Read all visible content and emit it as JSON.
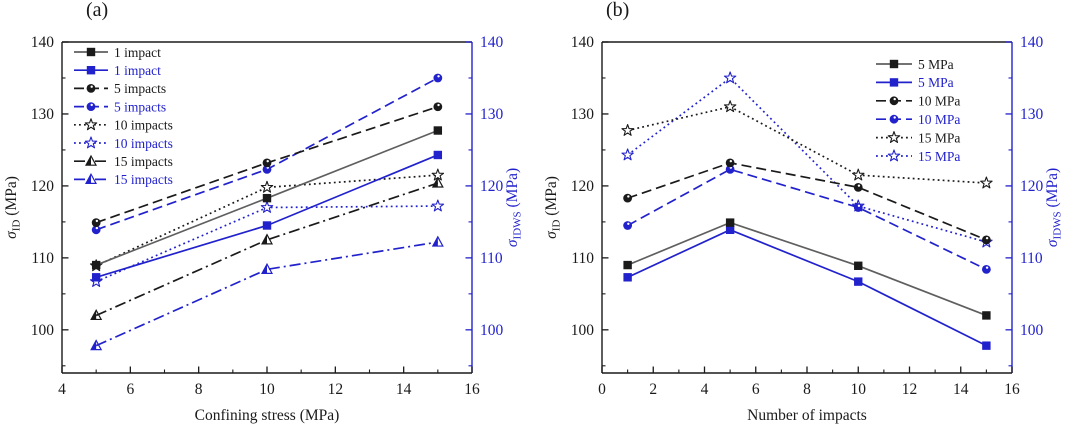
{
  "figure": {
    "background": "#ffffff"
  },
  "colors": {
    "black": "#1a1a1a",
    "gray": "#5f5f5f",
    "blue": "#2222cc",
    "white": "#ffffff"
  },
  "chart_data": [
    {
      "id": "a",
      "panel_label": "(a)",
      "type": "line",
      "xlabel": "Confining stress (MPa)",
      "ylabel_left": {
        "symbol": "σ",
        "subscript": "ID",
        "rest": " (MPa)"
      },
      "ylabel_right": {
        "symbol": "σ",
        "subscript": "IDWS",
        "rest": " (MPa)"
      },
      "xlim": [
        4,
        16
      ],
      "xticks": [
        4,
        6,
        8,
        10,
        12,
        14,
        16
      ],
      "x_minor_step": 1,
      "ylim": [
        94,
        140
      ],
      "yticks": [
        100,
        110,
        120,
        130,
        140
      ],
      "y_minor_step": 5,
      "grid": false,
      "legend_position": "top-left",
      "series": [
        {
          "label": "1 impact",
          "axis": "left",
          "color_key": "black",
          "line_color_key": "gray",
          "line_style": "solid",
          "marker": "square-filled",
          "x": [
            5,
            10,
            15
          ],
          "y": [
            109.0,
            118.3,
            127.7
          ]
        },
        {
          "label": "1 impact",
          "axis": "right",
          "color_key": "blue",
          "line_color_key": "blue",
          "line_style": "solid",
          "marker": "square-filled",
          "x": [
            5,
            10,
            15
          ],
          "y": [
            107.3,
            114.5,
            124.3
          ]
        },
        {
          "label": "5 impacts",
          "axis": "left",
          "color_key": "black",
          "line_color_key": "black",
          "line_style": "dashed",
          "marker": "circle-filled",
          "x": [
            5,
            10,
            15
          ],
          "y": [
            114.9,
            123.2,
            131.0
          ]
        },
        {
          "label": "5 impacts",
          "axis": "right",
          "color_key": "blue",
          "line_color_key": "blue",
          "line_style": "dashed",
          "marker": "circle-filled",
          "x": [
            5,
            10,
            15
          ],
          "y": [
            113.9,
            122.3,
            135.0
          ]
        },
        {
          "label": "10 impacts",
          "axis": "left",
          "color_key": "black",
          "line_color_key": "black",
          "line_style": "dotted",
          "marker": "star-open",
          "x": [
            5,
            10,
            15
          ],
          "y": [
            108.9,
            119.8,
            121.5
          ]
        },
        {
          "label": "10 impacts",
          "axis": "right",
          "color_key": "blue",
          "line_color_key": "blue",
          "line_style": "dotted",
          "marker": "star-open",
          "x": [
            5,
            10,
            15
          ],
          "y": [
            106.7,
            117.0,
            117.2
          ]
        },
        {
          "label": "15 impacts",
          "axis": "left",
          "color_key": "black",
          "line_color_key": "black",
          "line_style": "dashdot",
          "marker": "triangle-half",
          "x": [
            5,
            10,
            15
          ],
          "y": [
            102.0,
            112.5,
            120.4
          ]
        },
        {
          "label": "15 impacts",
          "axis": "right",
          "color_key": "blue",
          "line_color_key": "blue",
          "line_style": "dashdot",
          "marker": "triangle-half",
          "x": [
            5,
            10,
            15
          ],
          "y": [
            97.8,
            108.4,
            112.2
          ]
        }
      ]
    },
    {
      "id": "b",
      "panel_label": "(b)",
      "type": "line",
      "xlabel": "Number of impacts",
      "ylabel_left": {
        "symbol": "σ",
        "subscript": "ID",
        "rest": " (MPa)"
      },
      "ylabel_right": {
        "symbol": "σ",
        "subscript": "IDWS",
        "rest": " (MPa)"
      },
      "xlim": [
        0,
        16
      ],
      "xticks": [
        0,
        2,
        4,
        6,
        8,
        10,
        12,
        14,
        16
      ],
      "x_minor_step": 1,
      "ylim": [
        94,
        140
      ],
      "yticks": [
        100,
        110,
        120,
        130,
        140
      ],
      "y_minor_step": 5,
      "grid": false,
      "legend_position": "top-right",
      "series": [
        {
          "label": "5 MPa",
          "axis": "left",
          "color_key": "black",
          "line_color_key": "gray",
          "line_style": "solid",
          "marker": "square-filled",
          "x": [
            1,
            5,
            10,
            15
          ],
          "y": [
            109.0,
            114.9,
            108.9,
            102.0
          ]
        },
        {
          "label": "5 MPa",
          "axis": "right",
          "color_key": "blue",
          "line_color_key": "blue",
          "line_style": "solid",
          "marker": "square-filled",
          "x": [
            1,
            5,
            10,
            15
          ],
          "y": [
            107.3,
            113.9,
            106.7,
            97.8
          ]
        },
        {
          "label": "10 MPa",
          "axis": "left",
          "color_key": "black",
          "line_color_key": "black",
          "line_style": "dashed",
          "marker": "circle-filled",
          "x": [
            1,
            5,
            10,
            15
          ],
          "y": [
            118.3,
            123.2,
            119.8,
            112.5
          ]
        },
        {
          "label": "10 MPa",
          "axis": "right",
          "color_key": "blue",
          "line_color_key": "blue",
          "line_style": "dashed",
          "marker": "circle-filled",
          "x": [
            1,
            5,
            10,
            15
          ],
          "y": [
            114.5,
            122.3,
            117.0,
            108.4
          ]
        },
        {
          "label": "15 MPa",
          "axis": "left",
          "color_key": "black",
          "line_color_key": "black",
          "line_style": "dotted",
          "marker": "star-open",
          "x": [
            1,
            5,
            10,
            15
          ],
          "y": [
            127.7,
            131.0,
            121.5,
            120.4
          ]
        },
        {
          "label": "15 MPa",
          "axis": "right",
          "color_key": "blue",
          "line_color_key": "blue",
          "line_style": "dotted",
          "marker": "star-open",
          "x": [
            1,
            5,
            10,
            15
          ],
          "y": [
            124.3,
            135.0,
            117.2,
            112.2
          ]
        }
      ]
    }
  ]
}
